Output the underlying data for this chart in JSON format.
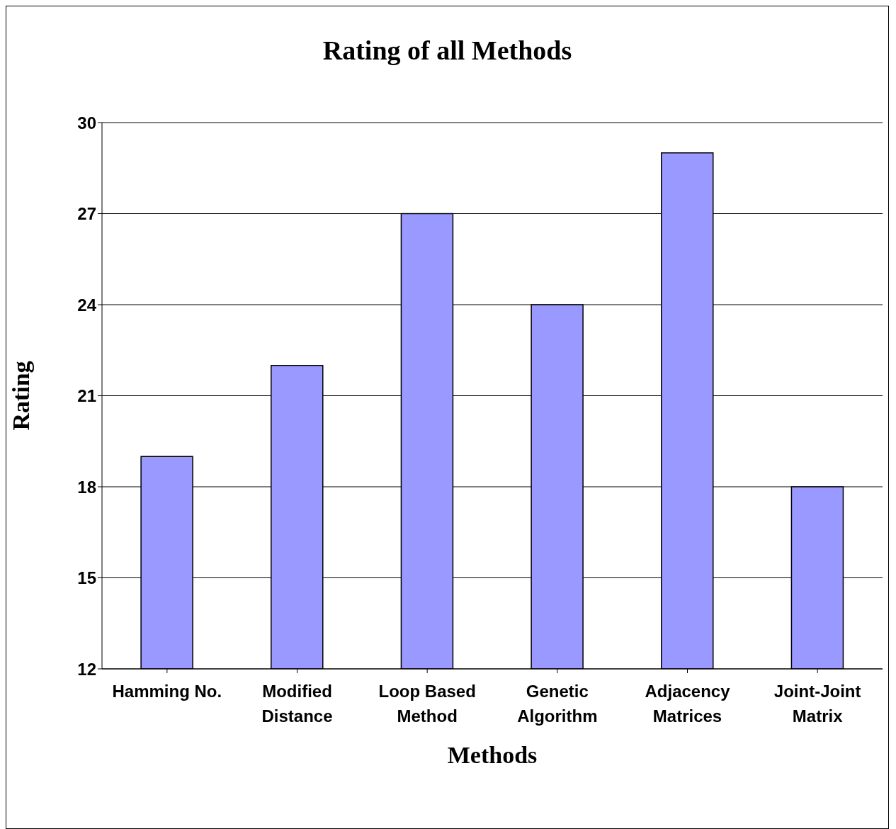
{
  "chart_data": {
    "type": "bar",
    "title": "Rating of all Methods",
    "xlabel": "Methods",
    "ylabel": "Rating",
    "categories": [
      "Hamming No.",
      "Modified Distance",
      "Loop Based Method",
      "Genetic Algorithm",
      "Adjacency Matrices",
      "Joint-Joint Matrix"
    ],
    "values": [
      19,
      22,
      27,
      24,
      29,
      18
    ],
    "color": "#9999ff",
    "ylim": [
      12,
      30
    ],
    "yticks": [
      12,
      15,
      18,
      21,
      24,
      27,
      30
    ],
    "grid": "y",
    "legend": false
  }
}
